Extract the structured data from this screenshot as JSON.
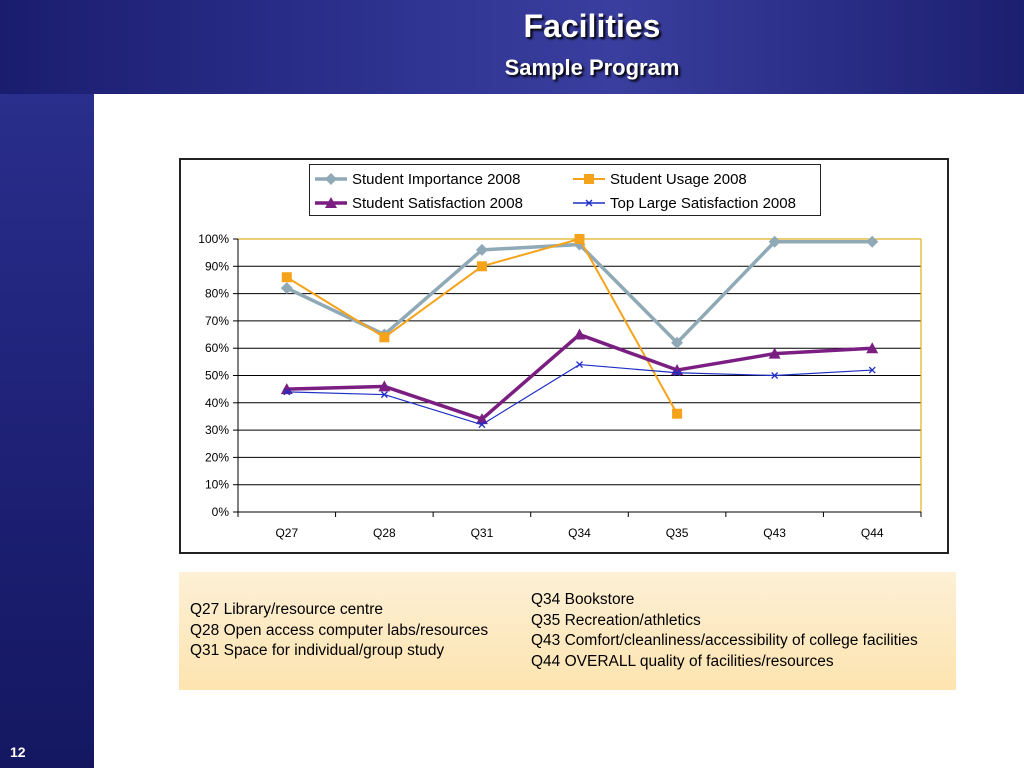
{
  "slide": {
    "title": "Facilities",
    "subtitle": "Sample Program",
    "page_number": "12"
  },
  "colors": {
    "importance": "#8fa9b6",
    "usage": "#f5a31a",
    "satisfaction": "#7b1e82",
    "top_large": "#1f2fc4",
    "plot_border": "#e0b020"
  },
  "chart_data": {
    "type": "line",
    "categories": [
      "Q27",
      "Q28",
      "Q31",
      "Q34",
      "Q35",
      "Q43",
      "Q44"
    ],
    "ylim": [
      0,
      100
    ],
    "ytick_labels": [
      "0%",
      "10%",
      "20%",
      "30%",
      "40%",
      "50%",
      "60%",
      "70%",
      "80%",
      "90%",
      "100%"
    ],
    "grid": true,
    "legend_placement": "top",
    "series": [
      {
        "name": "Student Importance 2008",
        "marker": "diamond",
        "values": [
          82,
          65,
          96,
          98,
          62,
          99,
          99
        ]
      },
      {
        "name": "Student Usage 2008",
        "marker": "square",
        "values": [
          86,
          64,
          90,
          100,
          36,
          null,
          null
        ]
      },
      {
        "name": "Student Satisfaction 2008",
        "marker": "triangle",
        "values": [
          45,
          46,
          34,
          65,
          52,
          58,
          60
        ]
      },
      {
        "name": "Top Large Satisfaction 2008",
        "marker": "x",
        "values": [
          44,
          43,
          32,
          54,
          51,
          50,
          52
        ]
      }
    ]
  },
  "notes": {
    "left": [
      "Q27 Library/resource centre",
      "Q28 Open access computer labs/resources",
      "Q31 Space for individual/group study"
    ],
    "right": [
      "Q34 Bookstore",
      "Q35 Recreation/athletics",
      "Q43 Comfort/cleanliness/accessibility of college facilities",
      "Q44 OVERALL quality of facilities/resources"
    ]
  }
}
